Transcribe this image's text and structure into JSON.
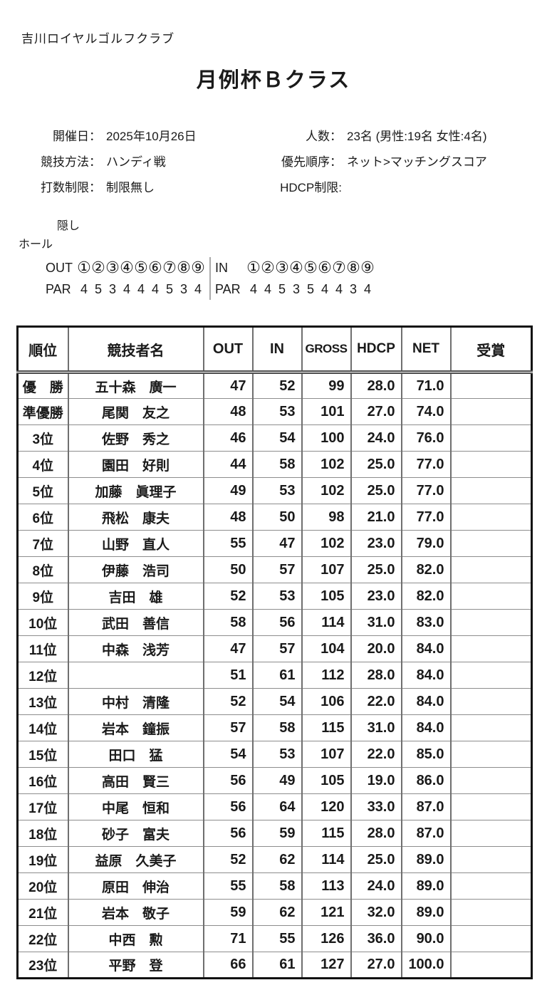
{
  "document": {
    "club_name": "吉川ロイヤルゴルフクラブ",
    "title": "月例杯Ｂクラス"
  },
  "info": {
    "date_label": "開催日：",
    "date_value": "2025年10月26日",
    "players_label": "人数：",
    "players_value": "23名 (男性:19名 女性:4名)",
    "method_label": "競技方法：",
    "method_value": "ハンディ戦",
    "priority_label": "優先順序：",
    "priority_value": "ネット>マッチングスコア",
    "stroke_limit_label": "打数制限：",
    "stroke_limit_value": "制限無し",
    "hdcp_limit_label": "HDCP制限:",
    "hdcp_limit_value": ""
  },
  "hidden_holes": {
    "caption_line1": "隠し",
    "caption_line2": "ホール",
    "out": {
      "label": "OUT",
      "holes": [
        "①",
        "②",
        "③",
        "④",
        "⑤",
        "⑥",
        "⑦",
        "⑧",
        "⑨"
      ],
      "par_label": "PAR",
      "par": [
        "4",
        "5",
        "3",
        "4",
        "4",
        "4",
        "5",
        "3",
        "4"
      ]
    },
    "in": {
      "label": "IN",
      "holes": [
        "①",
        "②",
        "③",
        "④",
        "⑤",
        "⑥",
        "⑦",
        "⑧",
        "⑨"
      ],
      "par_label": "PAR",
      "par": [
        "4",
        "4",
        "5",
        "3",
        "5",
        "4",
        "4",
        "3",
        "4"
      ]
    }
  },
  "table": {
    "headers": [
      "順位",
      "競技者名",
      "OUT",
      "IN",
      "GROSS",
      "HDCP",
      "NET",
      "受賞"
    ],
    "rows": [
      {
        "rank": "優　勝",
        "name": "五十森　廣一",
        "out": "47",
        "in": "52",
        "gross": "99",
        "hdcp": "28.0",
        "net": "71.0",
        "award": ""
      },
      {
        "rank": "準優勝",
        "name": "尾関　友之",
        "out": "48",
        "in": "53",
        "gross": "101",
        "hdcp": "27.0",
        "net": "74.0",
        "award": ""
      },
      {
        "rank": "3位",
        "name": "佐野　秀之",
        "out": "46",
        "in": "54",
        "gross": "100",
        "hdcp": "24.0",
        "net": "76.0",
        "award": ""
      },
      {
        "rank": "4位",
        "name": "園田　好則",
        "out": "44",
        "in": "58",
        "gross": "102",
        "hdcp": "25.0",
        "net": "77.0",
        "award": ""
      },
      {
        "rank": "5位",
        "name": "加藤　眞理子",
        "out": "49",
        "in": "53",
        "gross": "102",
        "hdcp": "25.0",
        "net": "77.0",
        "award": ""
      },
      {
        "rank": "6位",
        "name": "飛松　康夫",
        "out": "48",
        "in": "50",
        "gross": "98",
        "hdcp": "21.0",
        "net": "77.0",
        "award": ""
      },
      {
        "rank": "7位",
        "name": "山野　直人",
        "out": "55",
        "in": "47",
        "gross": "102",
        "hdcp": "23.0",
        "net": "79.0",
        "award": ""
      },
      {
        "rank": "8位",
        "name": "伊藤　浩司",
        "out": "50",
        "in": "57",
        "gross": "107",
        "hdcp": "25.0",
        "net": "82.0",
        "award": ""
      },
      {
        "rank": "9位",
        "name": "吉田　雄",
        "out": "52",
        "in": "53",
        "gross": "105",
        "hdcp": "23.0",
        "net": "82.0",
        "award": ""
      },
      {
        "rank": "10位",
        "name": "武田　善信",
        "out": "58",
        "in": "56",
        "gross": "114",
        "hdcp": "31.0",
        "net": "83.0",
        "award": ""
      },
      {
        "rank": "11位",
        "name": "中森　浅芳",
        "out": "47",
        "in": "57",
        "gross": "104",
        "hdcp": "20.0",
        "net": "84.0",
        "award": ""
      },
      {
        "rank": "12位",
        "name": "",
        "out": "51",
        "in": "61",
        "gross": "112",
        "hdcp": "28.0",
        "net": "84.0",
        "award": ""
      },
      {
        "rank": "13位",
        "name": "中村　清隆",
        "out": "52",
        "in": "54",
        "gross": "106",
        "hdcp": "22.0",
        "net": "84.0",
        "award": ""
      },
      {
        "rank": "14位",
        "name": "岩本　鐘振",
        "out": "57",
        "in": "58",
        "gross": "115",
        "hdcp": "31.0",
        "net": "84.0",
        "award": ""
      },
      {
        "rank": "15位",
        "name": "田口　猛",
        "out": "54",
        "in": "53",
        "gross": "107",
        "hdcp": "22.0",
        "net": "85.0",
        "award": ""
      },
      {
        "rank": "16位",
        "name": "高田　賢三",
        "out": "56",
        "in": "49",
        "gross": "105",
        "hdcp": "19.0",
        "net": "86.0",
        "award": ""
      },
      {
        "rank": "17位",
        "name": "中尾　恒和",
        "out": "56",
        "in": "64",
        "gross": "120",
        "hdcp": "33.0",
        "net": "87.0",
        "award": ""
      },
      {
        "rank": "18位",
        "name": "砂子　富夫",
        "out": "56",
        "in": "59",
        "gross": "115",
        "hdcp": "28.0",
        "net": "87.0",
        "award": ""
      },
      {
        "rank": "19位",
        "name": "益原　久美子",
        "out": "52",
        "in": "62",
        "gross": "114",
        "hdcp": "25.0",
        "net": "89.0",
        "award": ""
      },
      {
        "rank": "20位",
        "name": "原田　伸治",
        "out": "55",
        "in": "58",
        "gross": "113",
        "hdcp": "24.0",
        "net": "89.0",
        "award": ""
      },
      {
        "rank": "21位",
        "name": "岩本　敬子",
        "out": "59",
        "in": "62",
        "gross": "121",
        "hdcp": "32.0",
        "net": "89.0",
        "award": ""
      },
      {
        "rank": "22位",
        "name": "中西　勲",
        "out": "71",
        "in": "55",
        "gross": "126",
        "hdcp": "36.0",
        "net": "90.0",
        "award": ""
      },
      {
        "rank": "23位",
        "name": "平野　登",
        "out": "66",
        "in": "61",
        "gross": "127",
        "hdcp": "27.0",
        "net": "100.0",
        "award": ""
      }
    ]
  }
}
